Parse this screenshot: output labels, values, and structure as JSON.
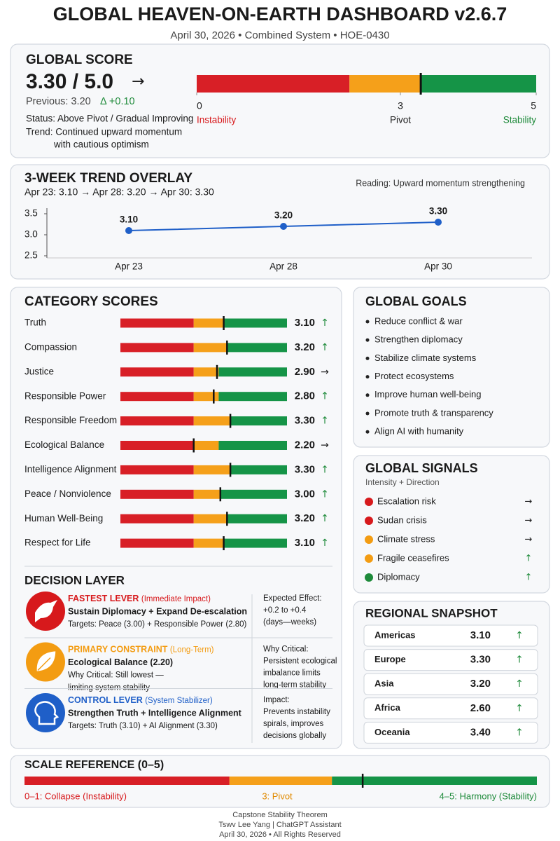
{
  "header": {
    "title": "GLOBAL HEAVEN-ON-EARTH DASHBOARD v2.6.7",
    "subtitle": "April 30, 2026  •  Combined System  •  HOE-0430"
  },
  "global_score": {
    "title": "GLOBAL SCORE",
    "score": {
      "value": 3.3,
      "label": "3.30 / 5.0"
    },
    "arrow": "→",
    "previous": "Previous: 3.20",
    "delta": "Δ +0.10",
    "status": "Status: Above Pivot / Gradual Improving",
    "trend": [
      "Trend: Continued upward momentum",
      "with cautious optimism"
    ],
    "scale": {
      "lim": [
        0,
        5
      ],
      "ticks": [
        0,
        3,
        5
      ],
      "tick_captions": [
        "Instability",
        "Pivot",
        "Stability"
      ],
      "caption_colors": [
        "#d7191c",
        "#222222",
        "#1e8a3a"
      ],
      "zone_colors": [
        "#d81f26",
        "#f5a01a",
        "#159447"
      ]
    }
  },
  "trend": {
    "title": "3-WEEK TREND OVERLAY",
    "summary": "Apr 23: 3.10  →  Apr 28: 3.20  →  Apr 30: 3.30",
    "reading": "Reading: Upward momentum strengthening"
  },
  "chart_data": {
    "type": "line",
    "categories": [
      "Apr 23",
      "Apr 28",
      "Apr 30"
    ],
    "values": [
      3.1,
      3.2,
      3.3
    ],
    "value_labels": [
      "3.10",
      "3.20",
      "3.30"
    ],
    "color": "#1f5fc8",
    "ylim": [
      2.5,
      3.5
    ],
    "yticks": [
      2.5,
      {
        "value": 3,
        "label": "3.0"
      },
      3.5
    ],
    "grid": false
  },
  "category_scores": {
    "title": "CATEGORY SCORES",
    "lim": [
      0,
      5
    ],
    "zone_colors": [
      "#d81f26",
      "#f5a01a",
      "#159447"
    ],
    "items": [
      {
        "name": "Truth",
        "score": {
          "value": 3.1,
          "label": "3.10"
        },
        "trend": {
          "symbol": "↑",
          "color": "#1e8a3a"
        }
      },
      {
        "name": "Compassion",
        "score": {
          "value": 3.2,
          "label": "3.20"
        },
        "trend": {
          "symbol": "↑",
          "color": "#1e8a3a"
        }
      },
      {
        "name": "Justice",
        "score": {
          "value": 2.9,
          "label": "2.90"
        },
        "trend": {
          "symbol": "→",
          "color": "#222222"
        }
      },
      {
        "name": "Responsible Power",
        "score": {
          "value": 2.8,
          "label": "2.80"
        },
        "trend": {
          "symbol": "↑",
          "color": "#1e8a3a"
        }
      },
      {
        "name": "Responsible Freedom",
        "score": {
          "value": 3.3,
          "label": "3.30"
        },
        "trend": {
          "symbol": "↑",
          "color": "#1e8a3a"
        }
      },
      {
        "name": "Ecological Balance",
        "score": {
          "value": 2.2,
          "label": "2.20"
        },
        "trend": {
          "symbol": "→",
          "color": "#222222"
        }
      },
      {
        "name": "Intelligence Alignment",
        "score": {
          "value": 3.3,
          "label": "3.30"
        },
        "trend": {
          "symbol": "↑",
          "color": "#1e8a3a"
        }
      },
      {
        "name": "Peace / Nonviolence",
        "score": {
          "value": 3,
          "label": "3.00"
        },
        "trend": {
          "symbol": "↑",
          "color": "#1e8a3a"
        }
      },
      {
        "name": "Human Well-Being",
        "score": {
          "value": 3.2,
          "label": "3.20"
        },
        "trend": {
          "symbol": "↑",
          "color": "#1e8a3a"
        }
      },
      {
        "name": "Respect for Life",
        "score": {
          "value": 3.1,
          "label": "3.10"
        },
        "trend": {
          "symbol": "↑",
          "color": "#1e8a3a"
        }
      }
    ]
  },
  "decision_layer": {
    "title": "DECISION LAYER",
    "items": [
      {
        "lead": "FASTEST LEVER",
        "tag": "(Immediate Impact)",
        "color": "#d7191c",
        "main": "Sustain Diplomacy + Expand De-escalation",
        "detail": [
          "Targets: Peace (3.00) + Responsible Power (2.80)"
        ],
        "side": [
          "Expected Effect:",
          "+0.2 to +0.4",
          "(days—weeks)"
        ]
      },
      {
        "lead": "PRIMARY CONSTRAINT",
        "tag": "(Long-Term)",
        "color": "#f39c12",
        "main": "Ecological Balance (2.20)",
        "detail": [
          "Why Critical: Still lowest —",
          "limiting system stability"
        ],
        "side": [
          "Why Critical:",
          "Persistent ecological",
          "imbalance limits",
          "long-term stability"
        ]
      },
      {
        "lead": "CONTROL LEVER",
        "tag": "(System Stabilizer)",
        "color": "#1f5fc8",
        "main": "Strengthen Truth + Intelligence Alignment",
        "detail": [
          "Targets: Truth (3.10) + AI Alignment (3.30)"
        ],
        "side": [
          "Impact:",
          "Prevents instability",
          "spirals, improves",
          "decisions globally"
        ]
      }
    ]
  },
  "global_goals": {
    "title": "GLOBAL GOALS",
    "items": [
      "Reduce conflict & war",
      "Strengthen diplomacy",
      "Stabilize climate systems",
      "Protect ecosystems",
      "Improve human well-being",
      "Promote truth & transparency",
      "Align AI with humanity"
    ]
  },
  "global_signals": {
    "title": "GLOBAL SIGNALS",
    "subtitle": "Intensity + Direction",
    "items": [
      {
        "name": "Escalation risk",
        "color": "#d7191c",
        "direction": {
          "symbol": "→",
          "color": "#222222"
        }
      },
      {
        "name": "Sudan crisis",
        "color": "#d7191c",
        "direction": {
          "symbol": "→",
          "color": "#222222"
        }
      },
      {
        "name": "Climate stress",
        "color": "#f39c12",
        "direction": {
          "symbol": "→",
          "color": "#222222"
        }
      },
      {
        "name": "Fragile ceasefires",
        "color": "#f39c12",
        "direction": {
          "symbol": "↑",
          "color": "#1e8a3a"
        }
      },
      {
        "name": "Diplomacy",
        "color": "#1e8a3a",
        "direction": {
          "symbol": "↑",
          "color": "#1e8a3a"
        }
      }
    ]
  },
  "regional_snapshot": {
    "title": "REGIONAL SNAPSHOT",
    "items": [
      {
        "name": "Americas",
        "score": "3.10",
        "trend": {
          "symbol": "↑",
          "color": "#1e8a3a"
        }
      },
      {
        "name": "Europe",
        "score": "3.30",
        "trend": {
          "symbol": "↑",
          "color": "#1e8a3a"
        }
      },
      {
        "name": "Asia",
        "score": "3.20",
        "trend": {
          "symbol": "↑",
          "color": "#1e8a3a"
        }
      },
      {
        "name": "Africa",
        "score": "2.60",
        "trend": {
          "symbol": "↑",
          "color": "#1e8a3a"
        }
      },
      {
        "name": "Oceania",
        "score": "3.40",
        "trend": {
          "symbol": "↑",
          "color": "#1e8a3a"
        }
      }
    ]
  },
  "scale_reference": {
    "title": "SCALE REFERENCE (0–5)",
    "zone_colors": [
      "#d81f26",
      "#f5a01a",
      "#159447"
    ],
    "labels": [
      {
        "text": "0–1: Collapse (Instability)",
        "color": "#d7191c"
      },
      {
        "text": "3: Pivot",
        "color": "#e08a00"
      },
      {
        "text": "4–5: Harmony (Stability)",
        "color": "#1e8a3a"
      }
    ]
  },
  "footer": [
    "Capstone Stability Theorem",
    "Tswv Lee Yang  |  ChatGPT Assistant",
    "April 30, 2026  •  All Rights Reserved"
  ]
}
